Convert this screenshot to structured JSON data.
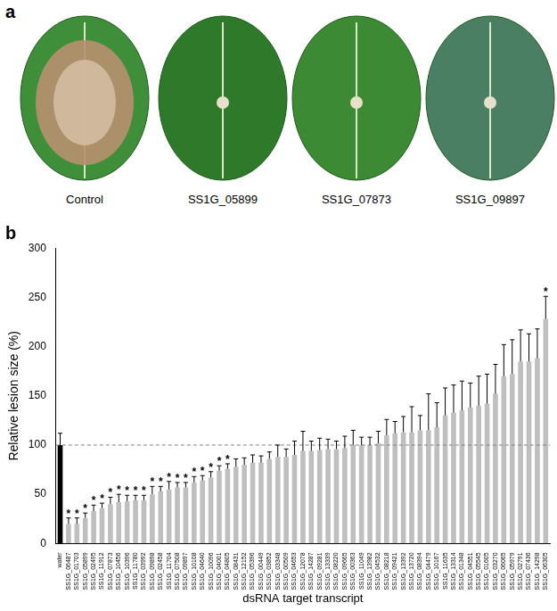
{
  "figure": {
    "panel_a": {
      "label": "a",
      "captions": [
        "Control",
        "SS1G_05899",
        "SS1G_07873",
        "SS1G_09897"
      ]
    }
  },
  "chart_data": {
    "type": "bar",
    "panel_label": "b",
    "x_label": "dsRNA target transcript",
    "y_label": "Relative lesion size (%)",
    "categories": [
      "water",
      "SS1G_06487",
      "SS1G_01703",
      "SS1G_05899",
      "SS1G_02495",
      "SS1G_11912",
      "SS1G_07873",
      "SS1G_10456",
      "SS1G_10396",
      "SS1G_11780",
      "SS1G_03992",
      "SS1G_09898",
      "SS1G_02458",
      "SS1G_11704",
      "SS1G_07508",
      "SS1G_09897",
      "SS1G_10108",
      "SS1G_04640",
      "SS1G_10096",
      "SS1G_04001",
      "SS1G_04805",
      "SS1G_08431",
      "SS1G_12152",
      "SS1G_05396",
      "SS1G_00449",
      "SS1G_03852",
      "SS1G_03348",
      "SS1G_00509",
      "SS1G_04653",
      "SS1G_12078",
      "SS1G_14287",
      "SS1G_09281",
      "SS1G_13339",
      "SS1G_08220",
      "SS1G_09665",
      "SS1G_00363",
      "SS1G_11049",
      "SS1G_13982",
      "SS1G_04532",
      "SS1G_08218",
      "SS1G_09421",
      "SS1G_13392",
      "SS1G_13720",
      "SS1G_08394",
      "SS1G_04479",
      "SS1G_10167",
      "SS1G_11635",
      "SS1G_13314",
      "SS1G_01348",
      "SS1G_04551",
      "SS1G_05545",
      "SS1G_01605",
      "SS1G_03270",
      "SS1G_06065",
      "SS1G_05979",
      "SS1G_02791",
      "SS1G_07436",
      "SS1G_14298",
      "SS1G_06305"
    ],
    "values": [
      100,
      20,
      20,
      26,
      33,
      36,
      40,
      42,
      43,
      44,
      44,
      50,
      53,
      55,
      57,
      57,
      62,
      64,
      67,
      74,
      76,
      78,
      80,
      82,
      82,
      86,
      88,
      88,
      90,
      94,
      94,
      95,
      96,
      96,
      97,
      100,
      100,
      100,
      102,
      110,
      112,
      113,
      113,
      115,
      115,
      118,
      130,
      133,
      135,
      138,
      140,
      142,
      152,
      170,
      172,
      185,
      185,
      188,
      228
    ],
    "errors": [
      12,
      6,
      6,
      5,
      6,
      5,
      7,
      8,
      6,
      5,
      5,
      8,
      5,
      8,
      5,
      5,
      6,
      5,
      6,
      5,
      5,
      8,
      7,
      8,
      7,
      7,
      12,
      8,
      14,
      20,
      10,
      12,
      10,
      8,
      12,
      15,
      8,
      8,
      12,
      16,
      12,
      16,
      26,
      15,
      37,
      25,
      28,
      28,
      30,
      25,
      30,
      30,
      30,
      32,
      35,
      32,
      28,
      30,
      23
    ],
    "significance": [
      null,
      "*",
      "*",
      "*",
      "*",
      "*",
      "*",
      "*",
      "*",
      "*",
      "*",
      "*",
      "*",
      "*",
      "*",
      "*",
      "*",
      "*",
      "*",
      "*",
      "*",
      null,
      null,
      null,
      null,
      null,
      null,
      null,
      null,
      null,
      null,
      null,
      null,
      null,
      null,
      null,
      null,
      null,
      null,
      null,
      null,
      null,
      null,
      null,
      null,
      null,
      null,
      null,
      null,
      null,
      null,
      null,
      null,
      null,
      null,
      null,
      null,
      null,
      "*"
    ],
    "colors": [
      "#000000",
      "#bfbfbf",
      "#bfbfbf",
      "#bfbfbf",
      "#bfbfbf",
      "#bfbfbf",
      "#bfbfbf",
      "#bfbfbf",
      "#bfbfbf",
      "#bfbfbf",
      "#bfbfbf",
      "#bfbfbf",
      "#bfbfbf",
      "#bfbfbf",
      "#bfbfbf",
      "#bfbfbf",
      "#bfbfbf",
      "#bfbfbf",
      "#bfbfbf",
      "#bfbfbf",
      "#bfbfbf",
      "#bfbfbf",
      "#bfbfbf",
      "#bfbfbf",
      "#bfbfbf",
      "#bfbfbf",
      "#bfbfbf",
      "#bfbfbf",
      "#bfbfbf",
      "#bfbfbf",
      "#bfbfbf",
      "#bfbfbf",
      "#bfbfbf",
      "#bfbfbf",
      "#bfbfbf",
      "#bfbfbf",
      "#bfbfbf",
      "#bfbfbf",
      "#bfbfbf",
      "#bfbfbf",
      "#bfbfbf",
      "#bfbfbf",
      "#bfbfbf",
      "#bfbfbf",
      "#bfbfbf",
      "#bfbfbf",
      "#bfbfbf",
      "#bfbfbf",
      "#bfbfbf",
      "#bfbfbf",
      "#bfbfbf",
      "#bfbfbf",
      "#bfbfbf",
      "#bfbfbf",
      "#bfbfbf",
      "#bfbfbf",
      "#bfbfbf",
      "#bfbfbf",
      "#bfbfbf"
    ],
    "reference_line": 100,
    "ylim": [
      0,
      300
    ],
    "yticks": [
      0,
      50,
      100,
      150,
      200,
      250,
      300
    ],
    "grid": false
  }
}
